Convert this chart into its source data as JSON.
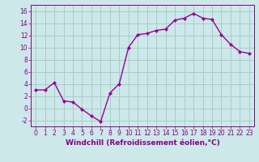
{
  "x": [
    0,
    1,
    2,
    3,
    4,
    5,
    6,
    7,
    8,
    9,
    10,
    11,
    12,
    13,
    14,
    15,
    16,
    17,
    18,
    19,
    20,
    21,
    22,
    23
  ],
  "y": [
    3.0,
    3.0,
    4.2,
    1.2,
    1.0,
    -0.2,
    -1.3,
    -2.2,
    2.5,
    4.0,
    10.0,
    12.1,
    12.3,
    12.8,
    13.0,
    14.5,
    14.8,
    15.6,
    14.8,
    14.6,
    12.1,
    10.5,
    9.3,
    9.0
  ],
  "xlabel": "Windchill (Refroidissement éolien,°C)",
  "line_color": "#990099",
  "marker": "D",
  "marker_size": 2.0,
  "line_width": 1.0,
  "bg_color": "#cce8e8",
  "grid_color": "#aacccc",
  "ylim": [
    -3,
    17
  ],
  "xlim": [
    -0.5,
    23.5
  ],
  "yticks": [
    -2,
    0,
    2,
    4,
    6,
    8,
    10,
    12,
    14,
    16
  ],
  "xticks": [
    0,
    1,
    2,
    3,
    4,
    5,
    6,
    7,
    8,
    9,
    10,
    11,
    12,
    13,
    14,
    15,
    16,
    17,
    18,
    19,
    20,
    21,
    22,
    23
  ],
  "tick_color": "#880088",
  "label_fontsize": 6.5,
  "tick_fontsize": 5.5
}
